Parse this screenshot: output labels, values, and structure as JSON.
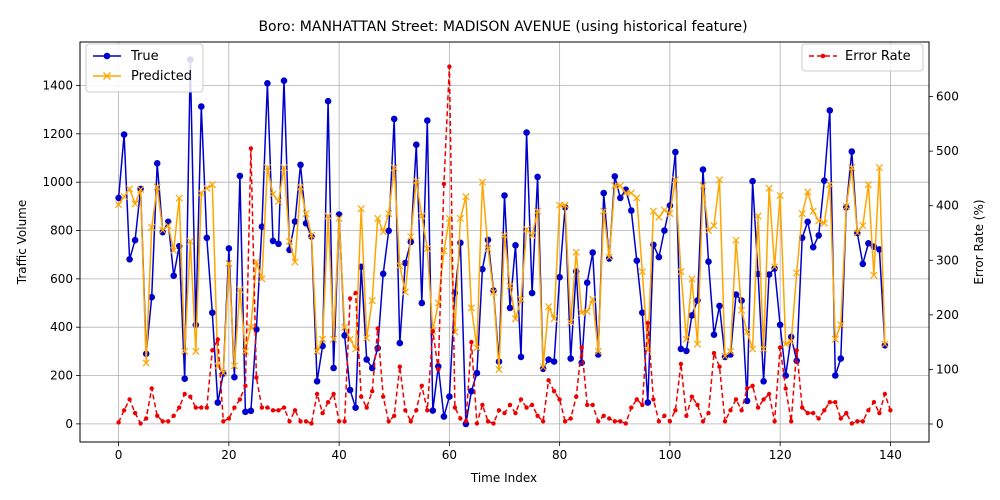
{
  "chart_data": {
    "type": "line",
    "title": "Boro: MANHATTAN Street: MADISON AVENUE (using historical feature)",
    "xlabel": "Time Index",
    "ylabel": "Traffic Volume",
    "y2label": "Error Rate (%)",
    "xlim": [
      -7,
      147
    ],
    "ylim": [
      -75,
      1580
    ],
    "y2lim": [
      -33,
      700
    ],
    "xticks": [
      0,
      20,
      40,
      60,
      80,
      100,
      120,
      140
    ],
    "yticks": [
      0,
      200,
      400,
      600,
      800,
      1000,
      1200,
      1400
    ],
    "y2ticks": [
      0,
      100,
      200,
      300,
      400,
      500,
      600
    ],
    "grid": true,
    "legend_left": "upper-left",
    "legend_right": "upper-right",
    "colors": {
      "true": "#0000cc",
      "predicted": "#ffa500",
      "error": "#ee0000"
    },
    "series": [
      {
        "name": "True",
        "values": [
          935,
          1197,
          681,
          760,
          972,
          290,
          524,
          1078,
          793,
          836,
          613,
          735,
          187,
          1507,
          410,
          1313,
          770,
          460,
          88,
          209,
          726,
          193,
          1026,
          50,
          54,
          391,
          816,
          1409,
          757,
          745,
          1420,
          720,
          837,
          1072,
          830,
          775,
          176,
          322,
          1335,
          231,
          866,
          366,
          140,
          67,
          650,
          266,
          231,
          313,
          621,
          799,
          1262,
          334,
          665,
          753,
          1155,
          500,
          1255,
          55,
          238,
          30,
          113,
          541,
          749,
          0,
          135,
          210,
          640,
          761,
          552,
          258,
          945,
          480,
          739,
          277,
          1205,
          541,
          1022,
          228,
          266,
          258,
          607,
          896,
          270,
          631,
          253,
          584,
          709,
          287,
          955,
          684,
          1024,
          935,
          969,
          883,
          675,
          460,
          88,
          741,
          690,
          800,
          903,
          1125,
          310,
          302,
          449,
          511,
          1052,
          671,
          369,
          488,
          277,
          287,
          535,
          510,
          95,
          1004,
          620,
          176,
          618,
          643,
          410,
          200,
          360,
          261,
          770,
          836,
          731,
          780,
          1006,
          1297,
          200,
          270,
          896,
          1127,
          790,
          662,
          747,
          733,
          722,
          325
        ]
      },
      {
        "name": "Predicted",
        "values": [
          907,
          941,
          972,
          910,
          970,
          252,
          813,
          980,
          801,
          820,
          718,
          934,
          300,
          755,
          300,
          955,
          975,
          990,
          240,
          210,
          664,
          240,
          555,
          300,
          400,
          670,
          600,
          1060,
          950,
          920,
          1060,
          755,
          670,
          980,
          870,
          780,
          300,
          350,
          860,
          350,
          850,
          400,
          350,
          310,
          890,
          355,
          510,
          850,
          795,
          870,
          1060,
          655,
          545,
          775,
          1005,
          860,
          725,
          385,
          500,
          715,
          850,
          380,
          850,
          940,
          480,
          315,
          1000,
          725,
          545,
          225,
          780,
          570,
          435,
          515,
          805,
          780,
          880,
          235,
          485,
          435,
          905,
          905,
          420,
          710,
          460,
          465,
          515,
          300,
          880,
          690,
          985,
          985,
          955,
          955,
          935,
          630,
          305,
          880,
          855,
          885,
          870,
          1010,
          630,
          350,
          600,
          330,
          985,
          800,
          820,
          1010,
          280,
          300,
          760,
          470,
          380,
          310,
          860,
          310,
          975,
          650,
          945,
          330,
          340,
          625,
          870,
          960,
          880,
          840,
          830,
          990,
          350,
          410,
          900,
          1060,
          790,
          820,
          990,
          615,
          1060,
          330
        ]
      },
      {
        "name": "Error Rate",
        "axis": "right",
        "values": [
          3,
          25,
          45,
          20,
          1,
          10,
          65,
          15,
          5,
          5,
          15,
          30,
          55,
          50,
          30,
          30,
          30,
          135,
          155,
          5,
          10,
          30,
          45,
          70,
          505,
          85,
          30,
          30,
          25,
          25,
          30,
          5,
          25,
          5,
          5,
          1,
          55,
          20,
          40,
          55,
          5,
          5,
          230,
          240,
          50,
          30,
          60,
          175,
          50,
          5,
          15,
          105,
          25,
          5,
          25,
          70,
          25,
          170,
          100,
          440,
          655,
          30,
          10,
          5,
          150,
          1,
          35,
          5,
          1,
          25,
          20,
          35,
          20,
          45,
          30,
          35,
          15,
          5,
          80,
          60,
          45,
          5,
          10,
          50,
          140,
          35,
          35,
          5,
          15,
          10,
          5,
          5,
          1,
          30,
          45,
          35,
          185,
          45,
          5,
          15,
          5,
          25,
          110,
          15,
          50,
          35,
          5,
          20,
          130,
          105,
          5,
          25,
          45,
          25,
          65,
          70,
          30,
          45,
          55,
          5,
          140,
          65,
          5,
          135,
          30,
          20,
          20,
          10,
          25,
          40,
          40,
          10,
          20,
          1,
          5,
          5,
          25,
          40,
          20,
          55,
          25
        ]
      }
    ]
  }
}
